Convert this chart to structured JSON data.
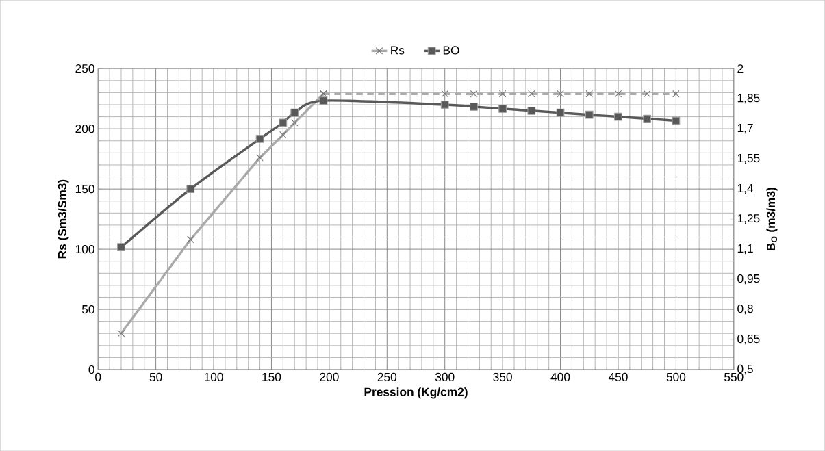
{
  "chart_data": {
    "type": "line",
    "xlabel": "Pression (Kg/cm2)",
    "ylabel": "Rs (Sm3/Sm3)",
    "y2label": "B$_{O}$ (m3/m3)",
    "xlim": [
      0,
      550
    ],
    "xticks": [
      0,
      50,
      100,
      150,
      200,
      250,
      300,
      350,
      400,
      450,
      500,
      550
    ],
    "ylim": [
      0,
      250
    ],
    "yticks": [
      0,
      50,
      100,
      150,
      200,
      250
    ],
    "y2lim": [
      0.5,
      2
    ],
    "y2ticks": [
      {
        "value": 0.5,
        "label": "0,5"
      },
      {
        "value": 0.65,
        "label": "0,65"
      },
      {
        "value": 0.8,
        "label": "0,8"
      },
      {
        "value": 0.95,
        "label": "0,95"
      },
      {
        "value": 1.1,
        "label": "1,1"
      },
      {
        "value": 1.25,
        "label": "1,25"
      },
      {
        "value": 1.4,
        "label": "1,4"
      },
      {
        "value": 1.55,
        "label": "1,55"
      },
      {
        "value": 1.7,
        "label": "1,7"
      },
      {
        "value": 1.85,
        "label": "1,85"
      },
      2
    ],
    "grid": true,
    "legend": "top",
    "series": [
      {
        "name": "Rs",
        "color": "#aaaaaa",
        "marker": "cross",
        "line_style": "solid",
        "x": [
          20,
          80,
          140,
          160,
          170,
          195
        ],
        "values": [
          30,
          108,
          176,
          195,
          205,
          229
        ]
      },
      {
        "color": "#aaaaaa",
        "marker": "cross",
        "line_style": "dashed",
        "x": [
          195,
          300,
          325,
          350,
          375,
          400,
          425,
          450,
          475,
          500
        ],
        "values": [
          229,
          229,
          229,
          229,
          229,
          229,
          229,
          229,
          229,
          229
        ]
      },
      {
        "name": "BO",
        "color": "#595959",
        "marker": "square",
        "line_style": "solid",
        "axis": "y2",
        "x": [
          20,
          80,
          140,
          160,
          170,
          195,
          300,
          325,
          350,
          375,
          400,
          425,
          450,
          475,
          500
        ],
        "values": [
          1.11,
          1.4,
          1.65,
          1.73,
          1.78,
          1.84,
          1.82,
          1.81,
          1.8,
          1.79,
          1.78,
          1.77,
          1.76,
          1.75,
          1.74
        ]
      }
    ]
  }
}
